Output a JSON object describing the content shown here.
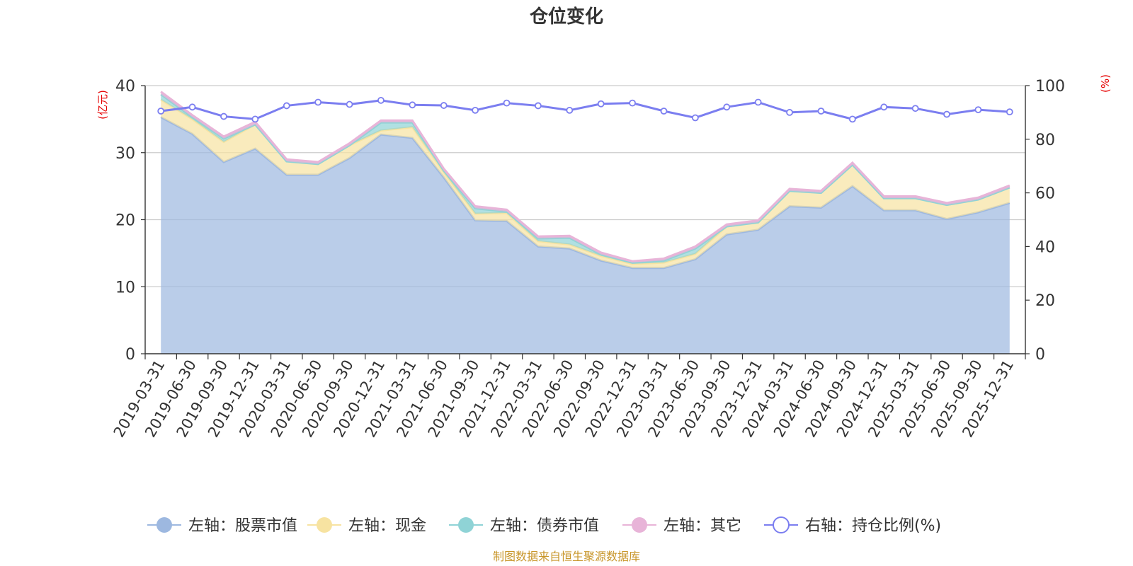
{
  "chart_data": {
    "type": "area",
    "title": "仓位变化",
    "left_axis_unit": "(亿元)",
    "right_axis_unit": "(%)",
    "ylim_left": [
      0,
      40
    ],
    "ylim_right": [
      0,
      100
    ],
    "yticks_left": [
      "0",
      "10",
      "20",
      "30",
      "40"
    ],
    "yticks_right": [
      "0",
      "20",
      "40",
      "60",
      "80",
      "100"
    ],
    "grid": true,
    "legend_position": "bottom",
    "source": "制图数据来自恒生聚源数据库",
    "categories": [
      "2019-03-31",
      "2019-06-30",
      "2019-09-30",
      "2019-12-31",
      "2020-03-31",
      "2020-06-30",
      "2020-09-30",
      "2020-12-31",
      "2021-03-31",
      "2021-06-30",
      "2021-09-30",
      "2021-12-31",
      "2022-03-31",
      "2022-06-30",
      "2022-09-30",
      "2022-12-31",
      "2023-03-31",
      "2023-06-30",
      "2023-09-30",
      "2023-12-31",
      "2024-03-31",
      "2024-06-30",
      "2024-09-30",
      "2024-12-31",
      "2025-03-31",
      "2025-06-30",
      "2025-09-30",
      "2025-12-31"
    ],
    "series": [
      {
        "name": "左轴：股票市值",
        "axis": "left",
        "kind": "stacked-area",
        "color": "#9db8e0",
        "values": [
          35.3,
          32.8,
          28.6,
          30.6,
          26.7,
          26.7,
          29.2,
          32.7,
          32.2,
          26.3,
          19.9,
          19.8,
          16.0,
          15.7,
          13.9,
          12.8,
          12.8,
          14.1,
          17.8,
          18.5,
          22.0,
          21.8,
          25.0,
          21.4,
          21.4,
          20.1,
          21.1,
          22.5
        ]
      },
      {
        "name": "左轴：现金",
        "axis": "left",
        "kind": "stacked-area",
        "color": "#f7e3a1",
        "values": [
          2.6,
          2.2,
          3.0,
          3.6,
          2.0,
          1.6,
          1.9,
          0.6,
          1.6,
          0.8,
          1.0,
          1.2,
          0.8,
          0.6,
          0.7,
          0.6,
          0.8,
          0.8,
          1.2,
          1.1,
          2.3,
          2.2,
          3.2,
          1.8,
          1.8,
          2.1,
          1.9,
          2.3
        ]
      },
      {
        "name": "左轴：债券市值",
        "axis": "left",
        "kind": "stacked-area",
        "color": "#8fd3d6",
        "values": [
          0.8,
          0.3,
          0.5,
          0.0,
          0.0,
          0.0,
          0.0,
          1.2,
          0.7,
          0.2,
          0.8,
          0.2,
          0.4,
          1.0,
          0.2,
          0.2,
          0.3,
          0.8,
          0.0,
          0.0,
          0.0,
          0.0,
          0.0,
          0.0,
          0.0,
          0.0,
          0.0,
          0.0
        ]
      },
      {
        "name": "左轴：其它",
        "axis": "left",
        "kind": "stacked-area",
        "color": "#e8b4d8",
        "values": [
          0.4,
          0.3,
          0.3,
          0.4,
          0.3,
          0.3,
          0.3,
          0.3,
          0.3,
          0.3,
          0.3,
          0.3,
          0.3,
          0.3,
          0.3,
          0.2,
          0.3,
          0.3,
          0.3,
          0.3,
          0.3,
          0.3,
          0.3,
          0.3,
          0.3,
          0.3,
          0.3,
          0.3
        ]
      },
      {
        "name": "右轴：持仓比例(%)",
        "axis": "right",
        "kind": "line",
        "color": "#7b7ef0",
        "values": [
          90.5,
          92.0,
          88.5,
          87.5,
          92.5,
          93.8,
          93.0,
          94.5,
          92.8,
          92.6,
          90.8,
          93.5,
          92.5,
          90.8,
          93.2,
          93.5,
          90.5,
          88.0,
          92.0,
          93.8,
          90.0,
          90.5,
          87.5,
          92.0,
          91.5,
          89.3,
          91.0,
          90.2
        ]
      }
    ]
  }
}
